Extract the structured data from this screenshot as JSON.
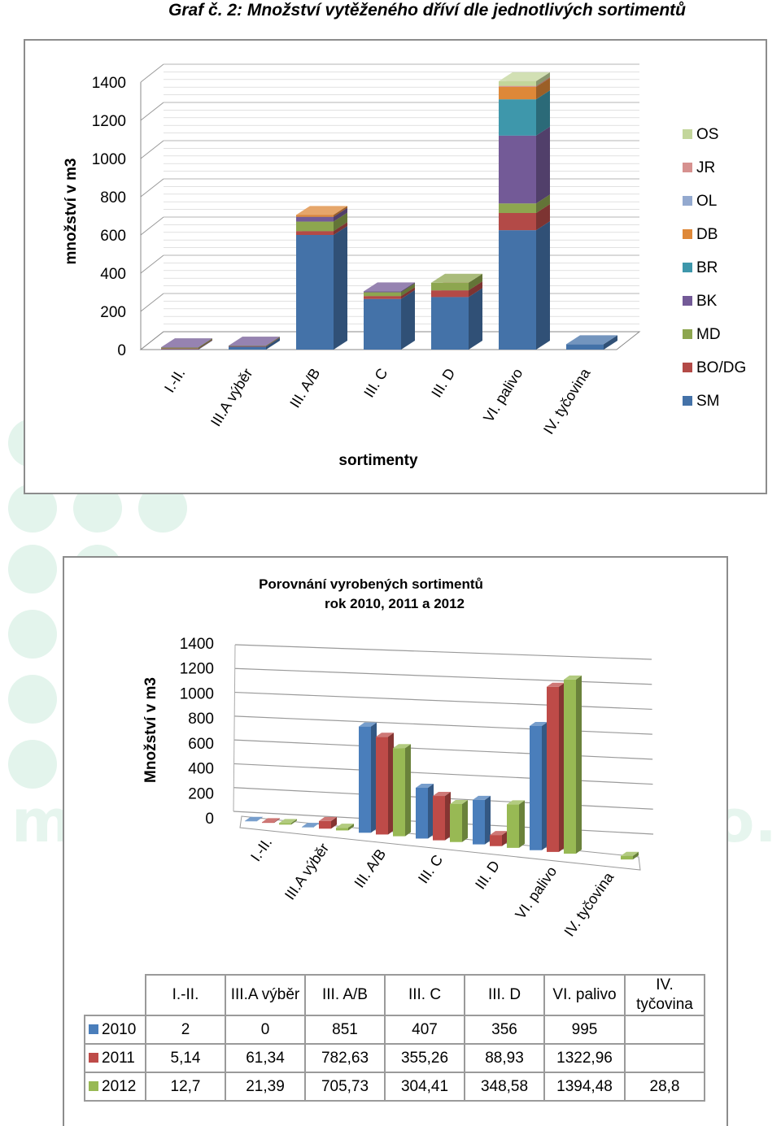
{
  "page": {
    "title": "Graf č. 2: Množství vytěženého dříví dle jednotlivých sortimentů"
  },
  "watermark": {
    "text": "m",
    "text2": "o."
  },
  "chart_data": [
    {
      "type": "bar",
      "stacked": true,
      "three_d": true,
      "title": "",
      "xlabel": "sortimenty",
      "ylabel": "množství v m3",
      "ylim": [
        0,
        1400
      ],
      "yticks": [
        0,
        200,
        400,
        600,
        800,
        1000,
        1200,
        1400
      ],
      "legend_position": "right",
      "categories": [
        "I.-II.",
        "III.A výběr",
        "III. A/B",
        "III. C",
        "III. D",
        "VI. palivo",
        "IV. tyčovina"
      ],
      "series": [
        {
          "name": "SM",
          "color": "#4472a8",
          "values": [
            2,
            15,
            600,
            265,
            275,
            625,
            28
          ]
        },
        {
          "name": "BO/DG",
          "color": "#b34a47",
          "values": [
            4,
            2,
            20,
            15,
            35,
            90,
            0
          ]
        },
        {
          "name": "MD",
          "color": "#8da64f",
          "values": [
            5,
            3,
            50,
            20,
            40,
            50,
            0
          ]
        },
        {
          "name": "BK",
          "color": "#735a97",
          "values": [
            1,
            1,
            25,
            5,
            0,
            355,
            0
          ]
        },
        {
          "name": "BR",
          "color": "#3e97ab",
          "values": [
            0,
            0,
            0,
            0,
            0,
            190,
            0
          ]
        },
        {
          "name": "DB",
          "color": "#de8838",
          "values": [
            0,
            0,
            10,
            0,
            0,
            65,
            0
          ]
        },
        {
          "name": "OL",
          "color": "#93a9cf",
          "values": [
            0,
            0,
            0,
            0,
            0,
            0,
            0
          ]
        },
        {
          "name": "JR",
          "color": "#d6918f",
          "values": [
            0,
            0,
            0,
            0,
            0,
            5,
            0
          ]
        },
        {
          "name": "OS",
          "color": "#c3d69b",
          "values": [
            0,
            0,
            0,
            0,
            0,
            25,
            0
          ]
        }
      ]
    },
    {
      "type": "bar",
      "three_d": true,
      "title": "Porovnání  vyrobených sortimentů",
      "subtitle": "rok 2010, 2011  a 2012",
      "xlabel": "",
      "ylabel": "Množství v m3",
      "ylim": [
        0,
        1400
      ],
      "yticks": [
        0,
        200,
        400,
        600,
        800,
        1000,
        1200,
        1400
      ],
      "categories": [
        "I.-II.",
        "III.A výběr",
        "III. A/B",
        "III. C",
        "III. D",
        "VI. palivo",
        "IV. tyčovina"
      ],
      "series": [
        {
          "name": "2010",
          "color": "#4a7ebb",
          "values": [
            2,
            0,
            851,
            407,
            356,
            995,
            null
          ]
        },
        {
          "name": "2011",
          "color": "#be4b48",
          "values": [
            5.14,
            61.34,
            782.63,
            355.26,
            88.93,
            1322.96,
            null
          ]
        },
        {
          "name": "2012",
          "color": "#98b954",
          "values": [
            12.7,
            21.39,
            705.73,
            304.41,
            348.58,
            1394.48,
            28.8
          ]
        }
      ]
    }
  ],
  "data_table": {
    "headers": [
      "I.-II.",
      "III.A výběr",
      "III. A/B",
      "III. C",
      "III. D",
      "VI. palivo",
      "IV. tyčovina"
    ],
    "rows": [
      {
        "label": "2010",
        "color": "#4a7ebb",
        "cells": [
          "2",
          "0",
          "851",
          "407",
          "356",
          "995",
          ""
        ]
      },
      {
        "label": "2011",
        "color": "#be4b48",
        "cells": [
          "5,14",
          "61,34",
          "782,63",
          "355,26",
          "88,93",
          "1322,96",
          ""
        ]
      },
      {
        "label": "2012",
        "color": "#98b954",
        "cells": [
          "12,7",
          "21,39",
          "705,73",
          "304,41",
          "348,58",
          "1394,48",
          "28,8"
        ]
      }
    ]
  }
}
